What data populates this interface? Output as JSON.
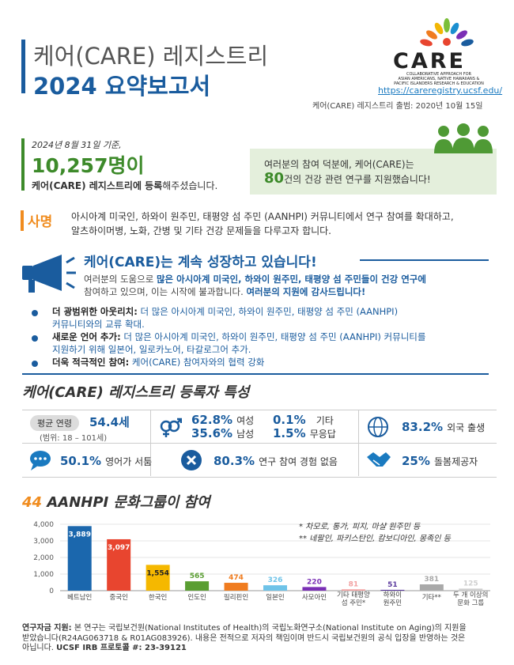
{
  "header": {
    "title_line1": "케어(CARE) 레지스트리",
    "title_line2": "2024 요약보고서",
    "logo": "CARE",
    "logo_subtitle": [
      "COLLABORATIVE APPROACH FOR",
      "ASIAN AMERICANS, NATIVE HAWAIIANS &",
      "PACIFIC ISLANDERS RESEARCH & EDUCATION"
    ],
    "url": "https://careregistry.ucsf.edu/",
    "launched": "케어(CARE) 레지스트리 출범: 2020년 10월 15일"
  },
  "registration": {
    "date": "2024년 8월 31일 기준,",
    "count": "10,257명이",
    "text_bold": "케어(CARE) 레지스트리에 등록",
    "text_rest": "해주셨습니다."
  },
  "studies": {
    "line1": "여러분의 참여 덕분에, 케어(CARE)는",
    "number": "80",
    "line2": "건의 건강 관련 연구를 지원했습니다!"
  },
  "mission": {
    "label": "사명",
    "text_line1": "아시아계 미국인, 하와이 원주민, 태평양 섬 주민 (AANHPI) 커뮤니티에서 연구 참여를 확대하고,",
    "text_line2": "알츠하이머병, 노화, 간병 및 기타 건강 문제들을 다루고자 합니다."
  },
  "growth": {
    "heading": "케어(CARE)는 계속 성장하고 있습니다!",
    "paragraph": {
      "part1": "여러분의 도움으로 ",
      "bold1": "많은 아시아계 미국인, 하와이 원주민, 태평양 섬 주민들이 건강 연구에",
      "part2": "참여하고 있으며, 이는 시작에 불과합니다. ",
      "bold2": "여러분의 지원에 감사드립니다!"
    },
    "bullets": [
      {
        "label": "더 광범위한 아웃리치:",
        "text_line1": " 더 많은 아시아계 미국인, 하와이 원주민, 태평양 섬 주민 (AANHPI)",
        "text_line2": "커뮤니티와의 교류 확대."
      },
      {
        "label": "새로운 언어 추가:",
        "text_line1": " 더 많은 아시아계 미국인, 하와이 원주민, 태평양 섬 주민 (AANHPI) 커뮤니티를",
        "text_line2": "지원하기 위해 일본어, 일로카노어, 타갈로그어 추가."
      },
      {
        "label": "더욱 적극적인 참여:",
        "text_line1": " 케어(CARE) 참여자와의 협력 강화",
        "text_line2": null
      }
    ]
  },
  "characteristics": {
    "heading": "케어(CARE) 레지스트리 등록자 특성",
    "age_label": "평균 연령",
    "age_value": "54.4세",
    "age_range": "(범위: 18 – 101세)",
    "gender": [
      {
        "value": "62.8%",
        "label": "여성"
      },
      {
        "value": "35.6%",
        "label": "남성"
      },
      {
        "value": "0.1%",
        "label": "기타"
      },
      {
        "value": "1.5%",
        "label": "무응답"
      }
    ],
    "foreign_born": {
      "value": "83.2%",
      "label": "외국 출생"
    },
    "limited_english": {
      "value": "50.1%",
      "label": "영어가 서툼"
    },
    "no_research": {
      "value": "80.3%",
      "label": "연구 참여 경험 없음"
    },
    "caregiver": {
      "value": "25%",
      "label": "돌봄제공자"
    }
  },
  "chart_data": {
    "type": "bar",
    "title_number": "44",
    "title": "AANHPI 문화그룹이 참여",
    "categories": [
      "베트남인",
      "중국인",
      "한국인",
      "인도인",
      "필리핀인",
      "일본인",
      "사모아인",
      "기타 태평양 섬 주민*",
      "하와이 원주민",
      "기타**",
      "두 개 이상의 문화 그룹"
    ],
    "values": [
      3889,
      3097,
      1554,
      565,
      474,
      326,
      220,
      81,
      51,
      381,
      125
    ],
    "value_labels": [
      "3,889",
      "3,097",
      "1,554",
      "565",
      "474",
      "326",
      "220",
      "81",
      "51",
      "381",
      "125"
    ],
    "colors": [
      "#1b67ad",
      "#e8452f",
      "#f5b800",
      "#5a9e32",
      "#f07c1f",
      "#6ec3e8",
      "#7a2fb5",
      "#f2a0a0",
      "#5b3a9e",
      "#a9a9a9",
      "#cfcfcf"
    ],
    "ylim": [
      0,
      4000
    ],
    "yticks": [
      0,
      {
        "value": 1000,
        "label": "1,000"
      },
      {
        "value": 2000,
        "label": "2,000"
      },
      {
        "value": 3000,
        "label": "3,000"
      },
      {
        "value": 4000,
        "label": "4,000"
      }
    ],
    "grid": true,
    "notes": [
      "* 차모로, 통가, 피지, 마샬 원주민 등",
      "** 네팔인, 파키스탄인, 캄보디아인, 몽족인 등"
    ]
  },
  "footer": {
    "funding_label": "연구자금 지원:",
    "funding_text_line1": " 본 연구는 국립보건원(National Institutes of Health)의 국립노화연구소(National Institute on Aging)의 지원을",
    "funding_text_line2": "받았습니다(R24AG063718 & R01AG083926). 내용은 전적으로 저자의 책임이며 반드시 국립보건원의 공식 입장을 반영하는 것은",
    "funding_text_line3": "아닙니다. ",
    "irb_label": "UCSF IRB 프로토콜 #:",
    "irb_number": " 23-39121"
  }
}
